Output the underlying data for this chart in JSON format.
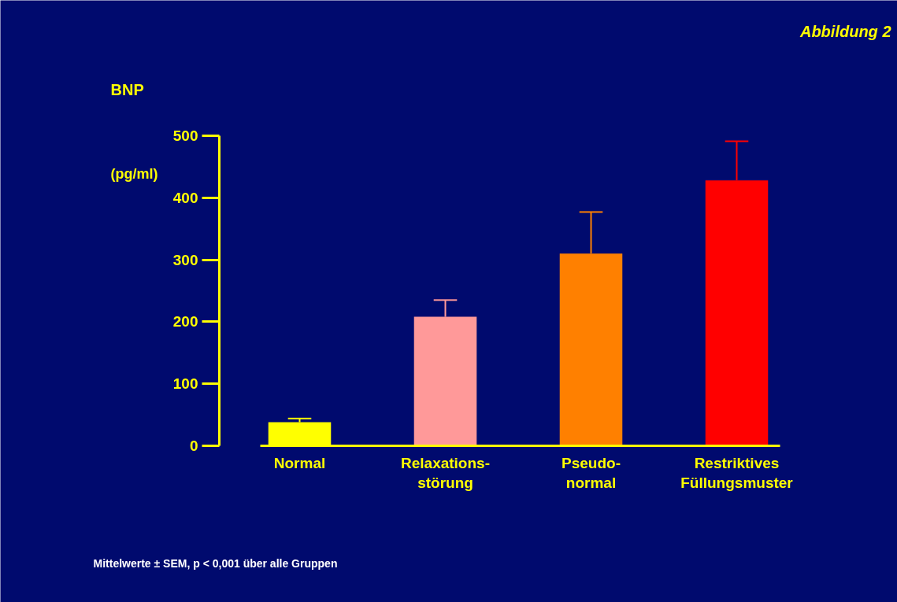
{
  "chart_data": {
    "type": "bar",
    "title": "Abbildung 2",
    "ylabel": "BNP",
    "categories": [
      "Normal",
      "Relaxations-\nstörung",
      "Pseudo-\nnormal",
      "Restriktives\nFüllungsmuster"
    ],
    "values": [
      38,
      208,
      310,
      428
    ],
    "colors": [
      "#ffff00",
      "#ff9999",
      "#ff8000",
      "#ff0000"
    ],
    "errors": [
      [
        38,
        44
      ],
      [
        208,
        235
      ],
      [
        310,
        377
      ],
      [
        428,
        491
      ]
    ],
    "ylim": [
      0,
      500
    ],
    "yticks": [
      0,
      100,
      200,
      300,
      400,
      500
    ],
    "grid": false,
    "annotations": [
      "(pg/ml)",
      "Mittelwerte ± SEM, p < 0,001 über alle Gruppen"
    ]
  }
}
